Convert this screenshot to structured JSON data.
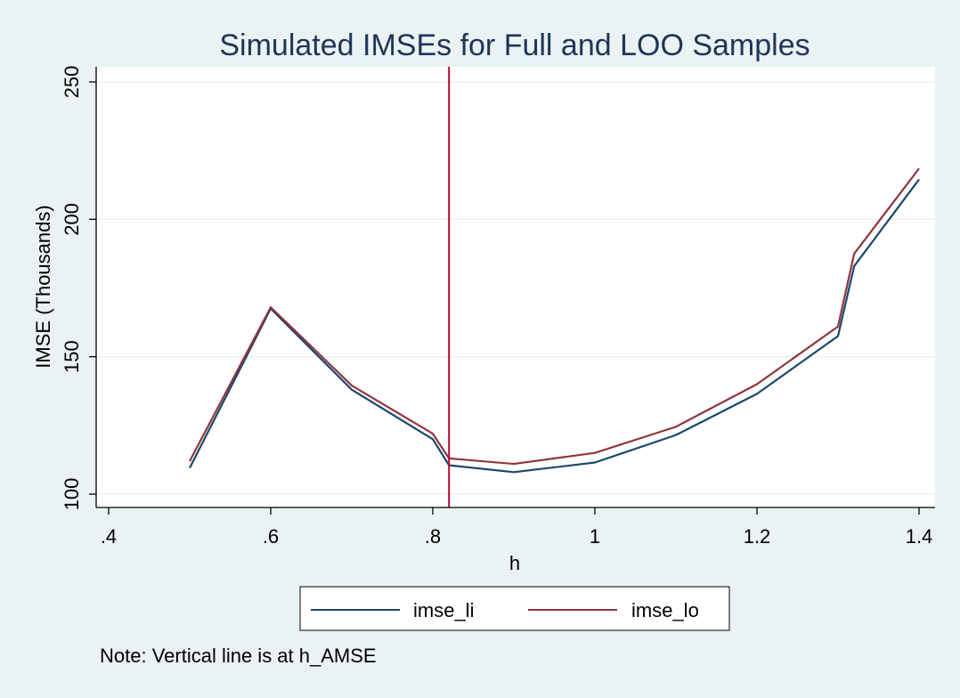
{
  "chart_data": {
    "type": "line",
    "title": "Simulated IMSEs for Full and LOO Samples",
    "xlabel": "h",
    "ylabel": "IMSE (Thousands)",
    "xlim": [
      0.4,
      1.4
    ],
    "ylim": [
      95,
      255
    ],
    "x_ticks": [
      0.4,
      0.6,
      0.8,
      1,
      1.2,
      1.4
    ],
    "x_tick_labels": [
      ".4",
      ".6",
      ".8",
      "1",
      "1.2",
      "1.4"
    ],
    "y_ticks": [
      100,
      150,
      200,
      250
    ],
    "y_tick_labels": [
      "100",
      "150",
      "200",
      "250"
    ],
    "grid": true,
    "x": [
      0.5,
      0.6,
      0.7,
      0.8,
      0.82,
      0.9,
      1.0,
      1.1,
      1.2,
      1.3,
      1.32,
      1.4
    ],
    "series": [
      {
        "name": "imse_li",
        "color": "#1a476f",
        "values": [
          109.5,
          167.5,
          138,
          120,
          110.5,
          108,
          111.5,
          121.5,
          136.5,
          157.5,
          183,
          214.5
        ]
      },
      {
        "name": "imse_lo",
        "color": "#90353b",
        "values": [
          112,
          168,
          139.5,
          122,
          113,
          111,
          115,
          124.5,
          140,
          161,
          187.5,
          218.5
        ]
      }
    ],
    "vline": {
      "x": 0.82,
      "color": "#c10534"
    },
    "legend_position": "bottom",
    "note": "Note: Vertical line is at h_AMSE"
  }
}
